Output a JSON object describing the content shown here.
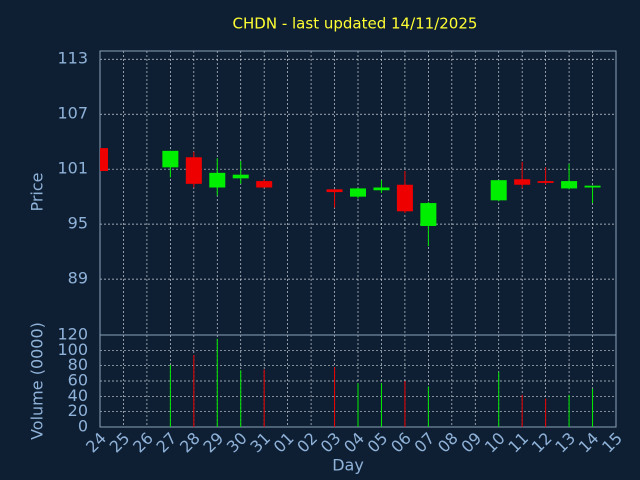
{
  "chart_data": {
    "type": "candlestick",
    "title": "CHDN - last updated 14/11/2025",
    "x_label": "Day",
    "y_label": "Price",
    "categories": [
      "24",
      "25",
      "26",
      "27",
      "28",
      "29",
      "30",
      "31",
      "01",
      "02",
      "03",
      "04",
      "05",
      "06",
      "07",
      "08",
      "09",
      "10",
      "11",
      "12",
      "13",
      "14",
      "15"
    ],
    "open": [
      103.3,
      null,
      null,
      101.2,
      102.3,
      99.0,
      100.0,
      99.7,
      null,
      null,
      98.8,
      98.0,
      98.7,
      99.3,
      94.8,
      null,
      null,
      97.6,
      99.9,
      99.7,
      98.9,
      99.0,
      null
    ],
    "high": [
      103.3,
      null,
      null,
      103.0,
      102.9,
      102.2,
      101.9,
      99.9,
      null,
      null,
      98.8,
      98.9,
      99.8,
      100.8,
      97.4,
      null,
      null,
      99.8,
      101.8,
      101.2,
      101.6,
      99.2,
      null
    ],
    "low": [
      100.8,
      null,
      null,
      100.1,
      99.0,
      98.1,
      99.4,
      99.0,
      null,
      null,
      96.8,
      97.8,
      98.4,
      96.2,
      92.6,
      null,
      null,
      97.5,
      98.9,
      99.3,
      98.8,
      97.3,
      null
    ],
    "close": [
      100.8,
      null,
      null,
      103.0,
      99.4,
      100.6,
      100.4,
      99.0,
      null,
      null,
      98.5,
      98.9,
      99.0,
      96.4,
      97.3,
      null,
      null,
      99.8,
      99.3,
      99.5,
      99.7,
      99.2,
      null
    ],
    "up_color": "#00ee00",
    "down_color": "#ee0000",
    "ylim": [
      82.9,
      113.9
    ],
    "yticks": [
      89,
      95,
      101,
      107,
      113
    ],
    "grid": true,
    "volume": {
      "label": "Volume (0000)",
      "values": [
        null,
        null,
        null,
        81,
        94,
        115,
        74,
        75,
        null,
        null,
        78,
        57,
        57,
        60,
        53,
        null,
        null,
        72,
        42,
        37,
        42,
        50,
        null
      ],
      "ylim": [
        0,
        120
      ],
      "yticks": [
        0,
        20,
        40,
        60,
        80,
        100,
        120
      ]
    }
  }
}
